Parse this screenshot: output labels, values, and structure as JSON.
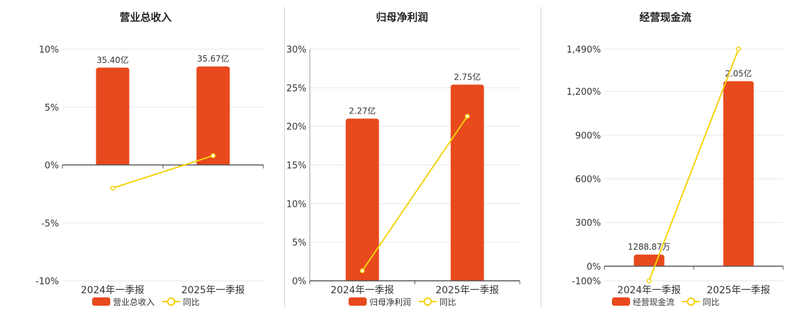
{
  "charts": [
    {
      "title": "营业总收入",
      "ytick_labels": [
        "10%",
        "5%",
        "0%",
        "-5%",
        "-10%"
      ],
      "legend_bar_label": "营业总收入",
      "legend_line_label": "同比"
    },
    {
      "title": "归母净利润",
      "ytick_labels": [
        "30%",
        "25%",
        "20%",
        "15%",
        "10%",
        "5%",
        "0%"
      ],
      "legend_bar_label": "归母净利润",
      "legend_line_label": "同比"
    },
    {
      "title": "经营现金流",
      "ytick_labels": [
        "1,490%",
        "1,200%",
        "900%",
        "600%",
        "300%",
        "0%",
        "-100%"
      ],
      "legend_bar_label": "经营现金流",
      "legend_line_label": "同比"
    }
  ],
  "chart_data": [
    {
      "type": "bar",
      "title": "营业总收入",
      "categories": [
        "2024年一季报",
        "2025年一季报"
      ],
      "ylim": [
        -10,
        10
      ],
      "yticks": [
        10,
        5,
        0,
        -5,
        -10
      ],
      "grid": true,
      "legend_position": "bottom",
      "series": [
        {
          "name": "营业总收入",
          "type": "bar",
          "values_in_axis_units": [
            8.4,
            8.5
          ],
          "data_labels": [
            "35.40亿",
            "35.67亿"
          ],
          "color": "#e8491d"
        },
        {
          "name": "同比",
          "type": "line",
          "values": [
            -2.0,
            0.8
          ],
          "color": "#f5d20a"
        }
      ]
    },
    {
      "type": "bar",
      "title": "归母净利润",
      "categories": [
        "2024年一季报",
        "2025年一季报"
      ],
      "ylim": [
        0,
        30
      ],
      "yticks": [
        30,
        25,
        20,
        15,
        10,
        5,
        0
      ],
      "grid": true,
      "legend_position": "bottom",
      "series": [
        {
          "name": "归母净利润",
          "type": "bar",
          "values_in_axis_units": [
            21.0,
            25.4
          ],
          "data_labels": [
            "2.27亿",
            "2.75亿"
          ],
          "color": "#e8491d"
        },
        {
          "name": "同比",
          "type": "line",
          "values": [
            1.3,
            21.3
          ],
          "color": "#f5d20a"
        }
      ]
    },
    {
      "type": "bar",
      "title": "经营现金流",
      "categories": [
        "2024年一季报",
        "2025年一季报"
      ],
      "ylim": [
        -100,
        1490
      ],
      "yticks": [
        1490,
        1200,
        900,
        600,
        300,
        0,
        -100
      ],
      "grid": true,
      "legend_position": "bottom",
      "series": [
        {
          "name": "经营现金流",
          "type": "bar",
          "values_in_axis_units": [
            80,
            1270
          ],
          "data_labels": [
            "1288.87万",
            "2.05亿"
          ],
          "color": "#e8491d"
        },
        {
          "name": "同比",
          "type": "line",
          "values": [
            -100,
            1490
          ],
          "color": "#f5d20a"
        }
      ]
    }
  ]
}
